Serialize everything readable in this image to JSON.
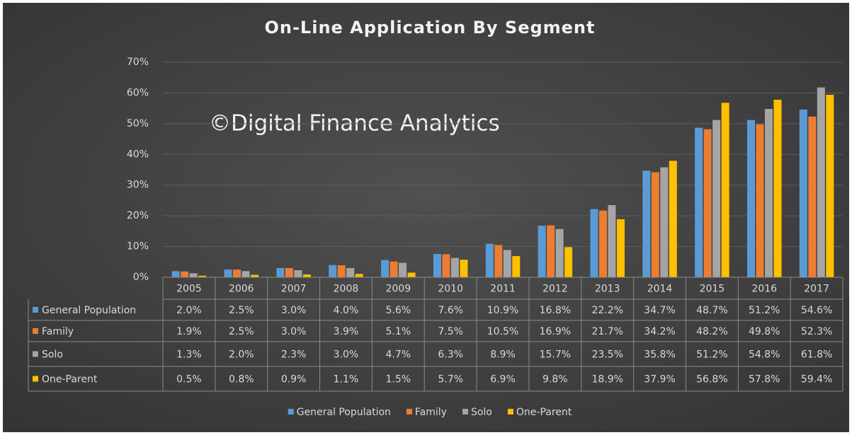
{
  "chart_data": {
    "type": "bar",
    "title": "On-Line Application By Segment",
    "watermark": "©Digital Finance Analytics",
    "categories": [
      "2005",
      "2006",
      "2007",
      "2008",
      "2009",
      "2010",
      "2011",
      "2012",
      "2013",
      "2014",
      "2015",
      "2016",
      "2017"
    ],
    "series": [
      {
        "name": "General Population",
        "color": "#5b9bd5",
        "values": [
          2.0,
          2.5,
          3.0,
          4.0,
          5.6,
          7.6,
          10.9,
          16.8,
          22.2,
          34.7,
          48.7,
          51.2,
          54.6
        ],
        "value_labels": [
          "2.0%",
          "2.5%",
          "3.0%",
          "4.0%",
          "5.6%",
          "7.6%",
          "10.9%",
          "16.8%",
          "22.2%",
          "34.7%",
          "48.7%",
          "51.2%",
          "54.6%"
        ]
      },
      {
        "name": "Family",
        "color": "#ed7d31",
        "values": [
          1.9,
          2.5,
          3.0,
          3.9,
          5.1,
          7.5,
          10.5,
          16.9,
          21.7,
          34.2,
          48.2,
          49.8,
          52.3
        ],
        "value_labels": [
          "1.9%",
          "2.5%",
          "3.0%",
          "3.9%",
          "5.1%",
          "7.5%",
          "10.5%",
          "16.9%",
          "21.7%",
          "34.2%",
          "48.2%",
          "49.8%",
          "52.3%"
        ]
      },
      {
        "name": "Solo",
        "color": "#a5a5a5",
        "values": [
          1.3,
          2.0,
          2.3,
          3.0,
          4.7,
          6.3,
          8.9,
          15.7,
          23.5,
          35.8,
          51.2,
          54.8,
          61.8
        ],
        "value_labels": [
          "1.3%",
          "2.0%",
          "2.3%",
          "3.0%",
          "4.7%",
          "6.3%",
          "8.9%",
          "15.7%",
          "23.5%",
          "35.8%",
          "51.2%",
          "54.8%",
          "61.8%"
        ]
      },
      {
        "name": "One-Parent",
        "color": "#ffc000",
        "values": [
          0.5,
          0.8,
          0.9,
          1.1,
          1.5,
          5.7,
          6.9,
          9.8,
          18.9,
          37.9,
          56.8,
          57.8,
          59.4
        ],
        "value_labels": [
          "0.5%",
          "0.8%",
          "0.9%",
          "1.1%",
          "1.5%",
          "5.7%",
          "6.9%",
          "9.8%",
          "18.9%",
          "37.9%",
          "56.8%",
          "57.8%",
          "59.4%"
        ]
      }
    ],
    "ylim": [
      0,
      70
    ],
    "yticks": [
      {
        "value": 0,
        "label": "0%"
      },
      {
        "value": 10,
        "label": "10%"
      },
      {
        "value": 20,
        "label": "20%"
      },
      {
        "value": 30,
        "label": "30%"
      },
      {
        "value": 40,
        "label": "40%"
      },
      {
        "value": 50,
        "label": "50%"
      },
      {
        "value": 60,
        "label": "60%"
      },
      {
        "value": 70,
        "label": "70%"
      }
    ],
    "grid": true,
    "legend": "bottom"
  }
}
